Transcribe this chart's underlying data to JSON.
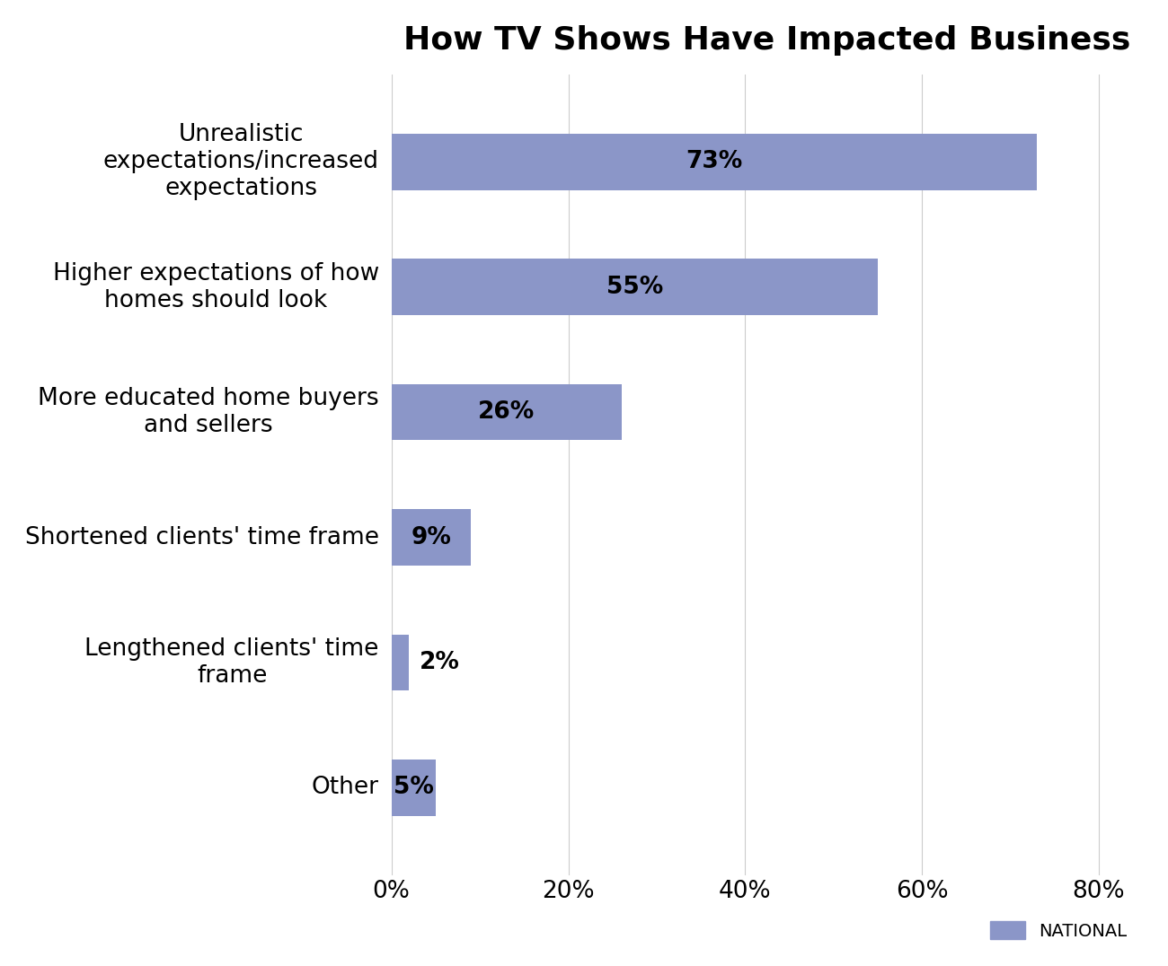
{
  "title": "How TV Shows Have Impacted Business",
  "categories": [
    "Unrealistic\nexpectations/increased\nexpectations",
    "Higher expectations of how\nhomes should look",
    "More educated home buyers\nand sellers",
    "Shortened clients' time frame",
    "Lengthened clients' time\nframe",
    "Other"
  ],
  "values": [
    73,
    55,
    26,
    9,
    2,
    5
  ],
  "bar_color": "#8b96c8",
  "label_color": "#000000",
  "background_color": "#ffffff",
  "title_fontsize": 26,
  "label_fontsize": 19,
  "value_fontsize": 19,
  "tick_fontsize": 19,
  "xlim": [
    0,
    85
  ],
  "xticks": [
    0,
    20,
    40,
    60,
    80
  ],
  "xtick_labels": [
    "0%",
    "20%",
    "40%",
    "60%",
    "80%"
  ],
  "legend_label": "NATIONAL",
  "legend_color": "#8b96c8",
  "bar_height": 0.45
}
